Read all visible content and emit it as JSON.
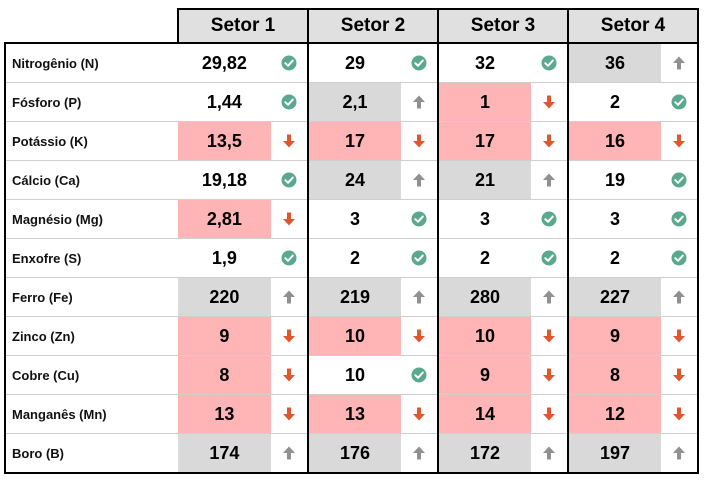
{
  "sectors": [
    "Setor 1",
    "Setor 2",
    "Setor 3",
    "Setor 4"
  ],
  "colors": {
    "ok": "#5aa98c",
    "low": "#e0572f",
    "high": "#909090",
    "low_fill": "#ffb5b5",
    "high_fill": "#d9d9d9"
  },
  "rows": [
    {
      "label": "Nitrogênio (N)",
      "cells": [
        {
          "value": "29,82",
          "status": "ok"
        },
        {
          "value": "29",
          "status": "ok"
        },
        {
          "value": "32",
          "status": "ok"
        },
        {
          "value": "36",
          "status": "high"
        }
      ]
    },
    {
      "label": "Fósforo (P)",
      "cells": [
        {
          "value": "1,44",
          "status": "ok"
        },
        {
          "value": "2,1",
          "status": "high"
        },
        {
          "value": "1",
          "status": "low"
        },
        {
          "value": "2",
          "status": "ok"
        }
      ]
    },
    {
      "label": "Potássio (K)",
      "cells": [
        {
          "value": "13,5",
          "status": "low"
        },
        {
          "value": "17",
          "status": "low"
        },
        {
          "value": "17",
          "status": "low"
        },
        {
          "value": "16",
          "status": "low"
        }
      ]
    },
    {
      "label": "Cálcio (Ca)",
      "cells": [
        {
          "value": "19,18",
          "status": "ok"
        },
        {
          "value": "24",
          "status": "high"
        },
        {
          "value": "21",
          "status": "high"
        },
        {
          "value": "19",
          "status": "ok"
        }
      ]
    },
    {
      "label": "Magnésio (Mg)",
      "cells": [
        {
          "value": "2,81",
          "status": "low"
        },
        {
          "value": "3",
          "status": "ok"
        },
        {
          "value": "3",
          "status": "ok"
        },
        {
          "value": "3",
          "status": "ok"
        }
      ]
    },
    {
      "label": "Enxofre (S)",
      "cells": [
        {
          "value": "1,9",
          "status": "ok"
        },
        {
          "value": "2",
          "status": "ok"
        },
        {
          "value": "2",
          "status": "ok"
        },
        {
          "value": "2",
          "status": "ok"
        }
      ]
    },
    {
      "label": "Ferro (Fe)",
      "cells": [
        {
          "value": "220",
          "status": "high"
        },
        {
          "value": "219",
          "status": "high"
        },
        {
          "value": "280",
          "status": "high"
        },
        {
          "value": "227",
          "status": "high"
        }
      ]
    },
    {
      "label": "Zinco (Zn)",
      "cells": [
        {
          "value": "9",
          "status": "low"
        },
        {
          "value": "10",
          "status": "low"
        },
        {
          "value": "10",
          "status": "low"
        },
        {
          "value": "9",
          "status": "low"
        }
      ]
    },
    {
      "label": "Cobre (Cu)",
      "cells": [
        {
          "value": "8",
          "status": "low"
        },
        {
          "value": "10",
          "status": "ok"
        },
        {
          "value": "9",
          "status": "low"
        },
        {
          "value": "8",
          "status": "low"
        }
      ]
    },
    {
      "label": "Manganês (Mn)",
      "cells": [
        {
          "value": "13",
          "status": "low"
        },
        {
          "value": "13",
          "status": "low"
        },
        {
          "value": "14",
          "status": "low"
        },
        {
          "value": "12",
          "status": "low"
        }
      ]
    },
    {
      "label": "Boro (B)",
      "cells": [
        {
          "value": "174",
          "status": "high"
        },
        {
          "value": "176",
          "status": "high"
        },
        {
          "value": "172",
          "status": "high"
        },
        {
          "value": "197",
          "status": "high"
        }
      ]
    }
  ]
}
